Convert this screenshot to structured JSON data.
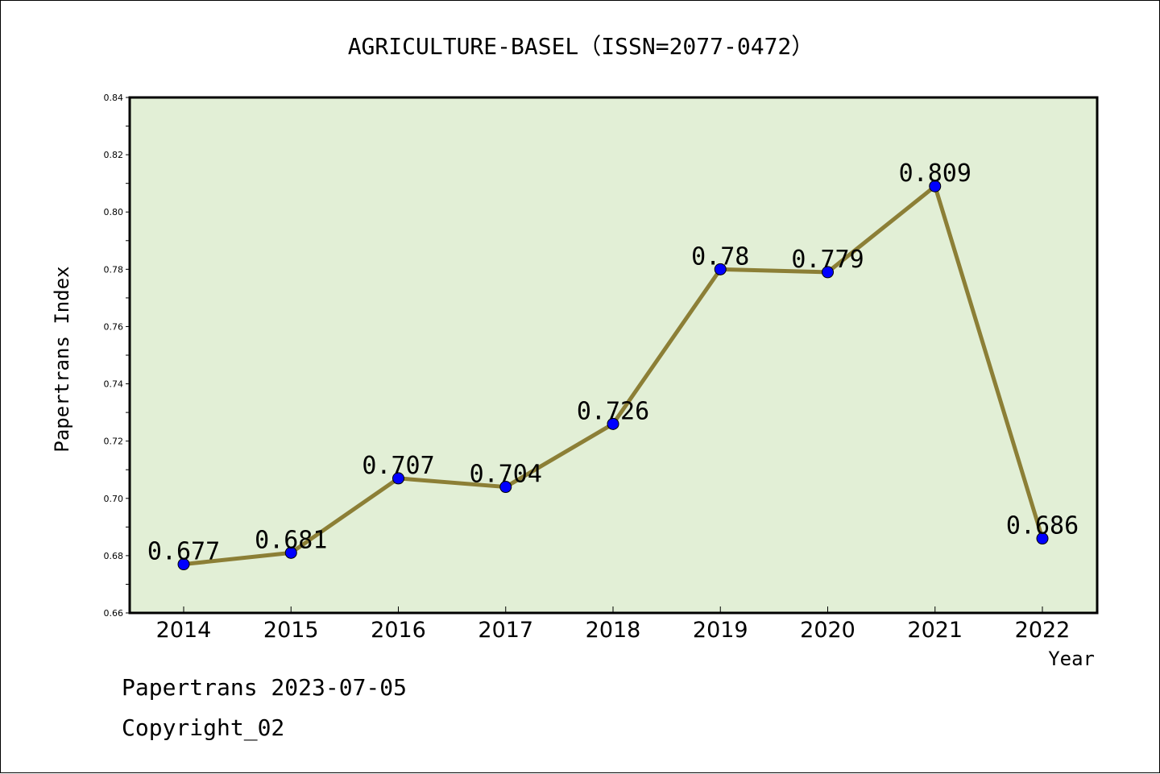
{
  "colors": {
    "plot_background": "#e2efd6",
    "line": "#8c7f36",
    "marker": "#0000ff",
    "axis": "#000000"
  },
  "footer": {
    "date_text": "Papertrans 2023-07-05",
    "copyright_text": "Copyright_02"
  },
  "chart_data": {
    "type": "line",
    "title": "AGRICULTURE-BASEL（ISSN=2077-0472）",
    "xlabel": "Year",
    "ylabel": "Papertrans Index",
    "categories": [
      "2014",
      "2015",
      "2016",
      "2017",
      "2018",
      "2019",
      "2020",
      "2021",
      "2022"
    ],
    "values": [
      0.677,
      0.681,
      0.707,
      0.704,
      0.726,
      0.78,
      0.779,
      0.809,
      0.686
    ],
    "data_labels": [
      "0.677",
      "0.681",
      "0.707",
      "0.704",
      "0.726",
      "0.78",
      "0.779",
      "0.809",
      "0.686"
    ],
    "ylim": [
      0.66,
      0.84
    ],
    "yticks": [
      "0.66",
      "0.68",
      "0.70",
      "0.72",
      "0.74",
      "0.76",
      "0.78",
      "0.80",
      "0.82",
      "0.84"
    ],
    "grid": false,
    "legend": "none"
  }
}
